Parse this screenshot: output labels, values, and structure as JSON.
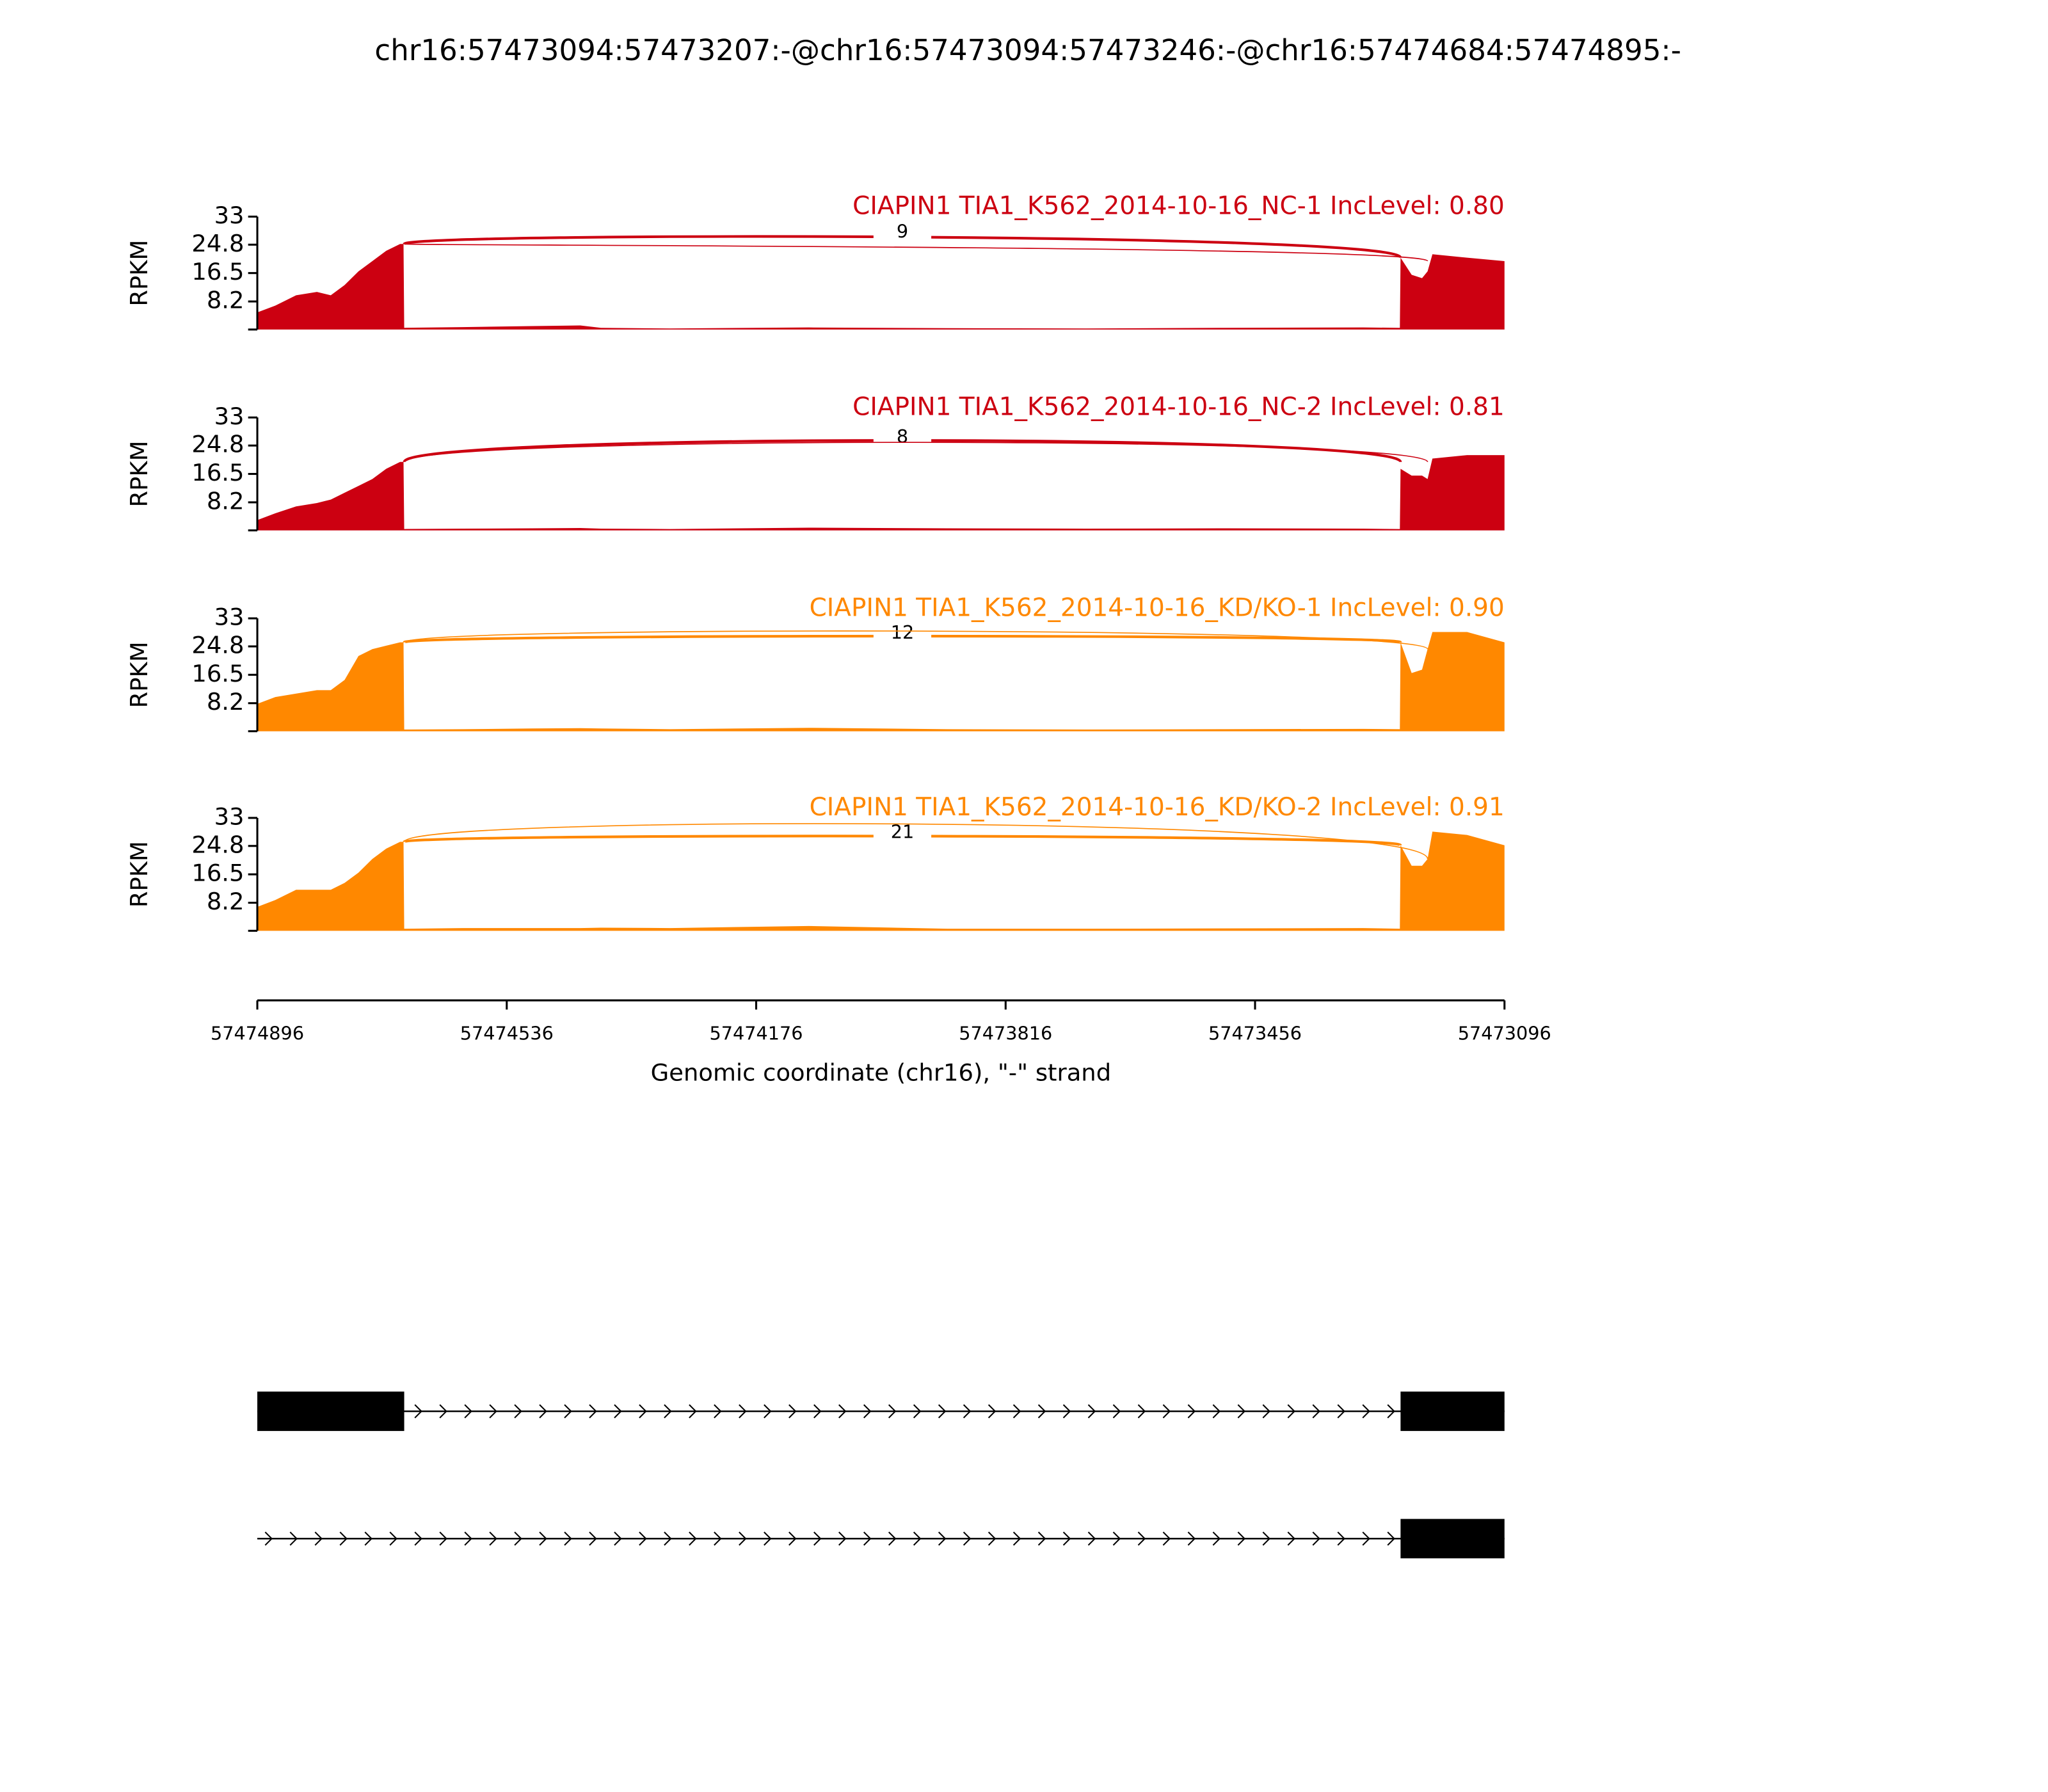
{
  "chart_data": {
    "type": "sashimi",
    "title": "chr16:57473094:57473207:-@chr16:57473094:57473246:-@chr16:57474684:57474895:-",
    "ylabel": "RPKM",
    "xlabel": "Genomic coordinate (chr16), \"-\" strand",
    "xlim": [
      57474896,
      57473096
    ],
    "xticks": [
      57474896,
      57474536,
      57474176,
      57473816,
      57473456,
      57473096
    ],
    "ylim": [
      0,
      33
    ],
    "yticks": [
      8.2,
      16.5,
      24.8,
      33
    ],
    "x": [
      57474896,
      57474870,
      57474840,
      57474810,
      57474790,
      57474770,
      57474750,
      57474730,
      57474710,
      57474690,
      57474685,
      57474684,
      57474600,
      57474500,
      57474430,
      57474400,
      57474300,
      57474100,
      57473900,
      57473700,
      57473500,
      57473300,
      57473247,
      57473246,
      57473230,
      57473215,
      57473207,
      57473200,
      57473150,
      57473096
    ],
    "series": [
      {
        "name": "CIAPIN1 TIA1_K562_2014-10-16_NC-1 IncLevel: 0.80",
        "color": "#cc0011",
        "values": [
          5,
          7,
          10,
          11,
          10,
          13,
          17,
          20,
          23,
          25,
          25,
          0.5,
          0.7,
          1,
          1.2,
          0.5,
          0.3,
          0.6,
          0.4,
          0.3,
          0.5,
          0.6,
          0.5,
          21,
          16,
          15,
          17,
          22,
          21,
          20
        ],
        "junctions": [
          {
            "x": [
              57474684,
              57473246
            ],
            "count": 9
          },
          {
            "x": [
              57474684,
              57473207
            ]
          }
        ]
      },
      {
        "name": "CIAPIN1 TIA1_K562_2014-10-16_NC-2 IncLevel: 0.81",
        "color": "#cc0011",
        "values": [
          3,
          5,
          7,
          8,
          9,
          11,
          13,
          15,
          18,
          20,
          20,
          0.4,
          0.5,
          0.6,
          0.7,
          0.5,
          0.4,
          0.8,
          0.6,
          0.5,
          0.6,
          0.5,
          0.4,
          18,
          16,
          16,
          15,
          21,
          22,
          22
        ],
        "junctions": [
          {
            "x": [
              57474684,
              57473246
            ],
            "count": 8
          },
          {
            "x": [
              57474684,
              57473207
            ]
          }
        ]
      },
      {
        "name": "CIAPIN1 TIA1_K562_2014-10-16_KD/KO-1 IncLevel: 0.90",
        "color": "#ff8800",
        "values": [
          8,
          10,
          11,
          12,
          12,
          15,
          22,
          24,
          25,
          26,
          26,
          0.5,
          0.6,
          0.8,
          0.9,
          0.8,
          0.6,
          1,
          0.6,
          0.5,
          0.6,
          0.7,
          0.6,
          26,
          17,
          18,
          24,
          29,
          29,
          26
        ],
        "junctions": [
          {
            "x": [
              57474684,
              57473246
            ],
            "count": 12
          },
          {
            "x": [
              57474684,
              57473207
            ]
          }
        ]
      },
      {
        "name": "CIAPIN1 TIA1_K562_2014-10-16_KD/KO-2 IncLevel: 0.91",
        "color": "#ff8800",
        "values": [
          7,
          9,
          12,
          12,
          12,
          14,
          17,
          21,
          24,
          26,
          26,
          0.6,
          0.8,
          0.8,
          0.8,
          0.9,
          0.8,
          1.4,
          0.6,
          0.6,
          0.7,
          0.8,
          0.6,
          25,
          19,
          19,
          21,
          29,
          28,
          25
        ],
        "junctions": [
          {
            "x": [
              57474684,
              57473246
            ],
            "count": 21
          },
          {
            "x": [
              57474684,
              57473207
            ]
          }
        ]
      }
    ],
    "transcripts": [
      {
        "start": 57474896,
        "end": 57473096,
        "exons": [
          [
            57474896,
            57474684
          ],
          [
            57473246,
            57473096
          ]
        ]
      },
      {
        "start": 57474896,
        "end": 57473096,
        "exons": [
          [
            57473246,
            57473096
          ]
        ]
      }
    ]
  }
}
